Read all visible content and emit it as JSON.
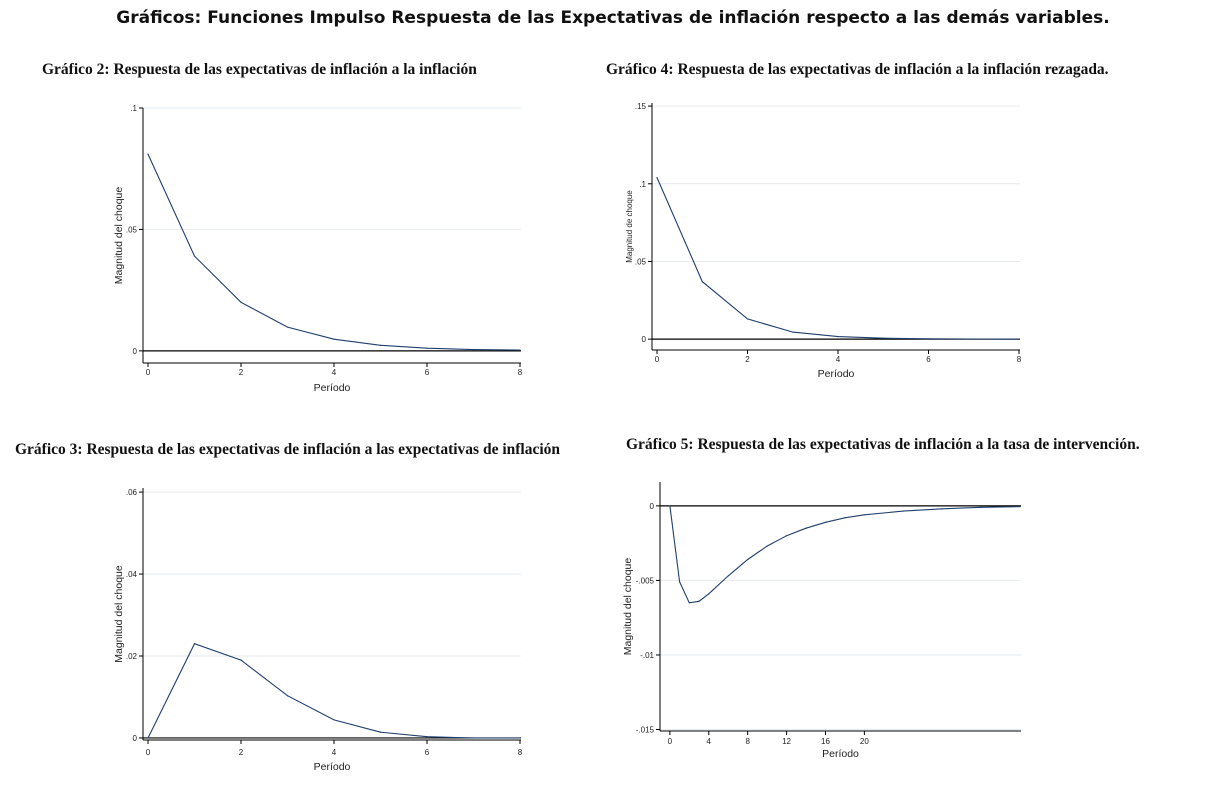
{
  "page": {
    "title": "Gráficos: Funciones Impulso Respuesta de las Expectativas de inflación respecto a las demás variables."
  },
  "colors": {
    "line": "#1f3f6e",
    "axis": "#000000",
    "grid": "#e6ebef"
  },
  "chart_data": [
    {
      "id": "g2",
      "type": "line",
      "title": "Gráfico 2: Respuesta de las expectativas de inflación a la inflación",
      "xlabel": "Período",
      "ylabel": "Magnitud del choque",
      "xlim": [
        0,
        8
      ],
      "ylim": [
        -0.005,
        0.1
      ],
      "xticks": [
        {
          "v": 0,
          "label": "0"
        },
        {
          "v": 2,
          "label": "2"
        },
        {
          "v": 4,
          "label": "4"
        },
        {
          "v": 6,
          "label": "6"
        },
        {
          "v": 8,
          "label": "8"
        }
      ],
      "yticks": [
        {
          "v": 0,
          "label": "0"
        },
        {
          "v": 0.05,
          "label": ".05"
        },
        {
          "v": 0.1,
          "label": ".1"
        }
      ],
      "grid": true,
      "x": [
        0,
        1,
        2,
        3,
        4,
        5,
        6,
        7,
        8
      ],
      "y": [
        0.081,
        0.039,
        0.02,
        0.0098,
        0.0048,
        0.0023,
        0.0011,
        0.0005,
        0.0003
      ]
    },
    {
      "id": "g4",
      "type": "line",
      "title": "Gráfico 4: Respuesta de las expectativas de inflación a la inflación rezagada.",
      "xlabel": "Período",
      "ylabel": "Magnitud de choque",
      "xlim": [
        0,
        8
      ],
      "ylim": [
        -0.007,
        0.152
      ],
      "xticks": [
        {
          "v": 0,
          "label": "0"
        },
        {
          "v": 2,
          "label": "2"
        },
        {
          "v": 4,
          "label": "4"
        },
        {
          "v": 6,
          "label": "6"
        },
        {
          "v": 8,
          "label": "8"
        }
      ],
      "yticks": [
        {
          "v": 0,
          "label": "0"
        },
        {
          "v": 0.05,
          "label": ".05"
        },
        {
          "v": 0.1,
          "label": ".1"
        },
        {
          "v": 0.15,
          "label": ".15"
        }
      ],
      "grid": true,
      "x": [
        0,
        1,
        2,
        3,
        4,
        5,
        6,
        7,
        8
      ],
      "y": [
        0.104,
        0.037,
        0.013,
        0.0045,
        0.0016,
        0.0006,
        0.0002,
        0.0001,
        0.0
      ]
    },
    {
      "id": "g3",
      "type": "line",
      "title": "Gráfico 3: Respuesta de las expectativas de inflación a las expectativas de inflación",
      "xlabel": "Período",
      "ylabel": "Magnitud del choque",
      "xlim": [
        0,
        8
      ],
      "ylim": [
        -0.0005,
        0.061
      ],
      "xticks": [
        {
          "v": 0,
          "label": "0"
        },
        {
          "v": 2,
          "label": "2"
        },
        {
          "v": 4,
          "label": "4"
        },
        {
          "v": 6,
          "label": "6"
        },
        {
          "v": 8,
          "label": "8"
        }
      ],
      "yticks": [
        {
          "v": 0,
          "label": "0"
        },
        {
          "v": 0.02,
          "label": ".02"
        },
        {
          "v": 0.04,
          "label": ".04"
        },
        {
          "v": 0.06,
          "label": ".06"
        }
      ],
      "grid": true,
      "x": [
        0,
        1,
        2,
        3,
        4,
        5,
        6,
        7,
        8
      ],
      "y": [
        0.0,
        0.023,
        0.019,
        0.0103,
        0.0044,
        0.0014,
        0.0003,
        0.0,
        0.0
      ]
    },
    {
      "id": "g5",
      "type": "line",
      "title": "Gráfico 5: Respuesta de las expectativas de inflación a la tasa de intervención.",
      "xlabel": "Período",
      "ylabel": "Magnitud del choque",
      "xlim": [
        -0.5,
        36
      ],
      "ylim": [
        -0.0151,
        0.0016
      ],
      "xticks": [
        {
          "v": 0,
          "label": "0"
        },
        {
          "v": 4,
          "label": "4"
        },
        {
          "v": 8,
          "label": "8"
        },
        {
          "v": 12,
          "label": "12"
        },
        {
          "v": 16,
          "label": "16"
        },
        {
          "v": 20,
          "label": "20"
        }
      ],
      "yticks": [
        {
          "v": 0,
          "label": "0"
        },
        {
          "v": -0.005,
          "label": "-.005"
        },
        {
          "v": -0.01,
          "label": "-.01"
        },
        {
          "v": -0.015,
          "label": "-.015"
        }
      ],
      "grid": true,
      "x": [
        0,
        1,
        2,
        3,
        4,
        6,
        8,
        10,
        12,
        14,
        16,
        18,
        20,
        24,
        28,
        32,
        36
      ],
      "y": [
        0.0,
        -0.0051,
        -0.0065,
        -0.0064,
        -0.0059,
        -0.0047,
        -0.0036,
        -0.0027,
        -0.002,
        -0.0015,
        -0.0011,
        -0.0008,
        -0.0006,
        -0.00035,
        -0.0002,
        -0.0001,
        -5e-05
      ]
    }
  ]
}
